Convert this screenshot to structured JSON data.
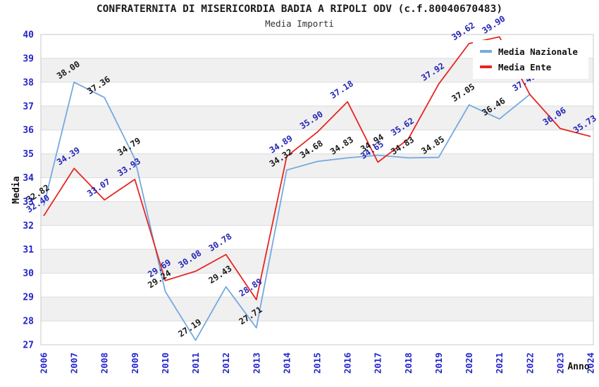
{
  "chart_data": {
    "type": "line",
    "title": "CONFRATERNITA DI MISERICORDIA BADIA A RIPOLI ODV (c.f.80040670483)",
    "subtitle": "Media Importi",
    "xlabel": "Anno",
    "ylabel": "Media",
    "ylim": [
      27,
      40
    ],
    "y_tick_step": 1,
    "grid": "horizontal gridlines with alternating gray bands",
    "legend_position": "top-right",
    "x": [
      2006,
      2007,
      2008,
      2009,
      2010,
      2011,
      2012,
      2013,
      2014,
      2015,
      2016,
      2017,
      2018,
      2019,
      2020,
      2021,
      2022,
      2023,
      2024
    ],
    "series": [
      {
        "name": "Media Nazionale",
        "color": "#74a9e0",
        "label_color": "#1a1a1a",
        "values": [
          32.82,
          38.0,
          37.36,
          34.79,
          29.24,
          27.19,
          29.43,
          27.71,
          34.32,
          34.68,
          34.83,
          34.94,
          34.83,
          34.85,
          37.05,
          36.46,
          37.49,
          null,
          null
        ],
        "hide_value_labels_at": [
          2022
        ]
      },
      {
        "name": "Media Ente",
        "color": "#e62621",
        "label_color": "#2525b8",
        "values": [
          32.4,
          34.39,
          33.07,
          33.93,
          29.69,
          30.08,
          30.78,
          28.89,
          34.89,
          35.9,
          37.18,
          34.65,
          35.62,
          37.92,
          39.62,
          39.9,
          37.49,
          36.06,
          35.73
        ],
        "hide_value_labels_at": []
      }
    ],
    "colors": {
      "tick_label": "#2323cc",
      "axis_title": "#111111",
      "band_fill": "#f0f0f0",
      "grid_line": "#dcdcdc",
      "plot_border": "#c8c8c8",
      "background": "#ffffff"
    }
  }
}
